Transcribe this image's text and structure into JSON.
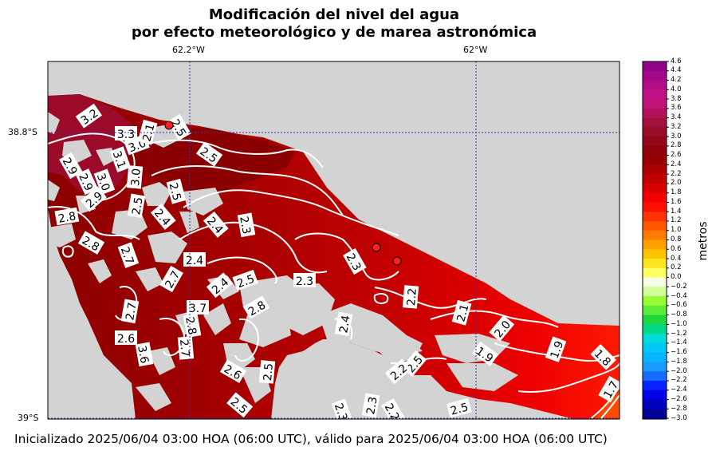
{
  "title": {
    "line1": "Modificación del nivel del agua",
    "line2": "por efecto meteorológico y de marea astronómica"
  },
  "axes": {
    "lon_ticks": [
      "62.2°W",
      "62°W"
    ],
    "lat_ticks": [
      "38.8°S",
      "39°S"
    ],
    "gridline_color": "#3333aa"
  },
  "colorbar": {
    "unit_label": "metros",
    "ticks": [
      "4.6",
      "4.4",
      "4.2",
      "4.0",
      "3.8",
      "3.6",
      "3.4",
      "3.2",
      "3.0",
      "2.8",
      "2.6",
      "2.4",
      "2.2",
      "2.0",
      "1.8",
      "1.6",
      "1.4",
      "1.2",
      "1.0",
      "0.8",
      "0.6",
      "0.4",
      "0.2",
      "0.0",
      "−0.2",
      "−0.4",
      "−0.6",
      "−0.8",
      "−1.0",
      "−1.2",
      "−1.4",
      "−1.6",
      "−1.8",
      "−2.0",
      "−2.2",
      "−2.4",
      "−2.6",
      "−2.8",
      "−3.0"
    ]
  },
  "map": {
    "land_color": "#d3d3d3",
    "contour_labels": [
      "3.2",
      "3.3",
      "3.0",
      "2.9",
      "3.1",
      "2.9",
      "3.0",
      "2.9",
      "2.8",
      "2.8",
      "2.7",
      "2.5",
      "2.5",
      "2.4",
      "2.4",
      "2.5",
      "2.3",
      "2.4",
      "2.7",
      "2.4",
      "2.5",
      "2.8",
      "2.3",
      "2.7",
      "3.7",
      "2.8",
      "2.7",
      "2.6",
      "3.6",
      "2.6",
      "2.5",
      "2.5",
      "2.3",
      "2.2",
      "2.1",
      "2.0",
      "1.9",
      "1.9",
      "1.8",
      "1.7",
      "2.4",
      "2.5",
      "2.2",
      "2.5",
      "2.3",
      "2.2",
      "2.3",
      "2.1",
      "3.0",
      "2.5"
    ]
  },
  "footer": "Inicializado 2025/06/04 03:00 HOA (06:00 UTC), válido para 2025/06/04 03:00 HOA (06:00 UTC)"
}
